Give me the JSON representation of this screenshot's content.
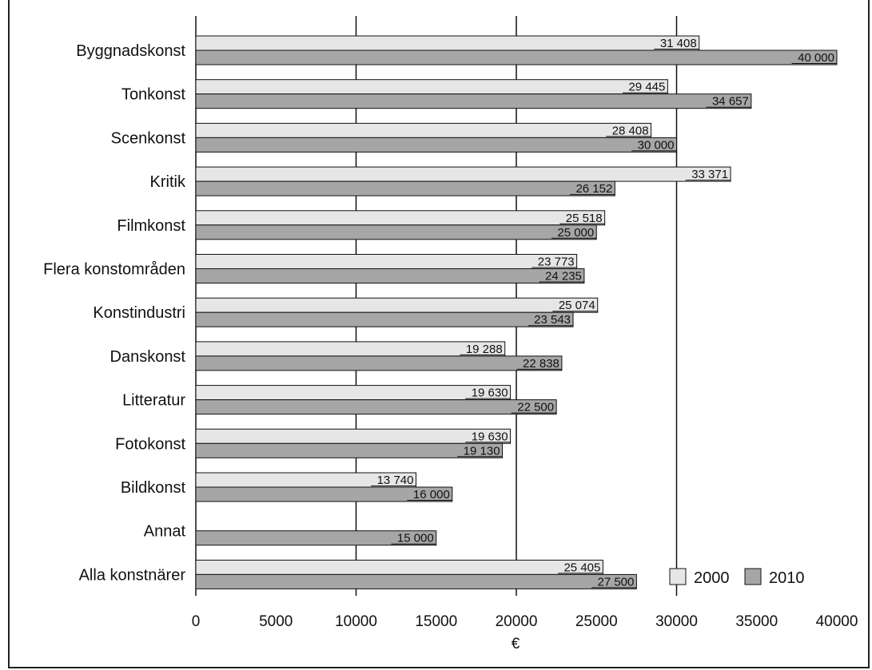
{
  "chart_data": {
    "type": "bar",
    "orientation": "horizontal",
    "categories": [
      "Byggnadskonst",
      "Tonkonst",
      "Scenkonst",
      "Kritik",
      "Filmkonst",
      "Flera konstområden",
      "Konstindustri",
      "Danskonst",
      "Litteratur",
      "Fotokonst",
      "Bildkonst",
      "Annat",
      "Alla konstnärer"
    ],
    "series": [
      {
        "name": "2000",
        "color": "#e6e6e6",
        "values": [
          31408,
          29445,
          28408,
          33371,
          25518,
          23773,
          25074,
          19288,
          19630,
          19630,
          13740,
          null,
          25405
        ],
        "labels": [
          "31 408",
          "29 445",
          "28 408",
          "33 371",
          "25 518",
          "23 773",
          "25 074",
          "19 288",
          "19 630",
          "19 630",
          "13 740",
          "",
          "25 405"
        ]
      },
      {
        "name": "2010",
        "color": "#a6a6a6",
        "values": [
          40000,
          34657,
          30000,
          26152,
          25000,
          24235,
          23543,
          22838,
          22500,
          19130,
          16000,
          15000,
          27500
        ],
        "labels": [
          "40 000",
          "34 657",
          "30 000",
          "26 152",
          "25 000",
          "24 235",
          "23 543",
          "22 838",
          "22 500",
          "19 130",
          "16 000",
          "15 000",
          "27 500"
        ]
      }
    ],
    "xlim": [
      0,
      40000
    ],
    "xticks": [
      "0",
      "5000",
      "10000",
      "15000",
      "20000",
      "25000",
      "30000",
      "35000",
      "40000"
    ],
    "xlabel": "€",
    "ylabel": "",
    "title": "",
    "grid": "vertical lines at 10000, 20000, 30000",
    "legend_position": "bottom-right"
  }
}
